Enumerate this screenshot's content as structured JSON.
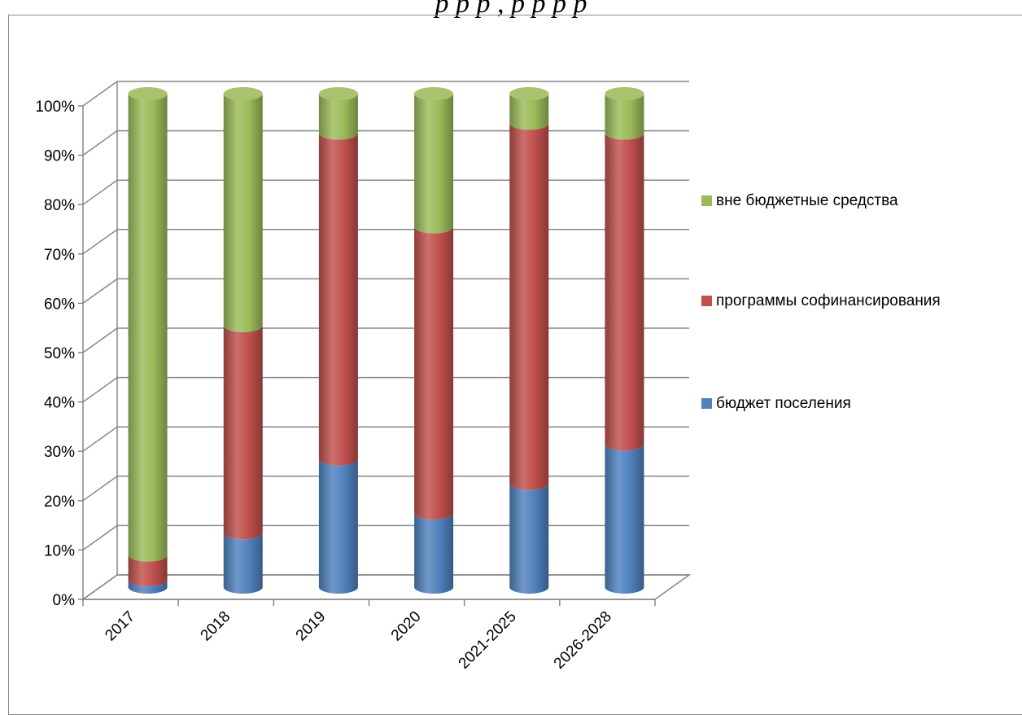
{
  "chart_data": {
    "type": "bar",
    "stacked": true,
    "percent": true,
    "three_d": true,
    "title": "",
    "title_visible_fragment": "р        р  р       ,   р  р        р  р",
    "categories": [
      "2017",
      "2018",
      "2019",
      "2020",
      "2021-2025",
      "2026-2028"
    ],
    "series": [
      {
        "name": "бюджет поселения",
        "color": "#4f81bd",
        "values": [
          1.5,
          11,
          26,
          15,
          21,
          29
        ]
      },
      {
        "name": "программы софинансирования",
        "color": "#c0504d",
        "values": [
          5,
          42,
          66,
          58,
          73,
          63
        ]
      },
      {
        "name": "вне бюджетные средства",
        "color": "#9bbb59",
        "values": [
          93.5,
          47,
          8,
          27,
          6,
          8
        ]
      }
    ],
    "ylim": [
      0,
      100
    ],
    "yticks": [
      "0%",
      "10%",
      "20%",
      "30%",
      "40%",
      "50%",
      "60%",
      "70%",
      "80%",
      "90%",
      "100%"
    ],
    "grid": true,
    "legend_position": "right",
    "legend_order": [
      "вне бюджетные средства",
      "программы софинансирования",
      "бюджет поселения"
    ]
  }
}
